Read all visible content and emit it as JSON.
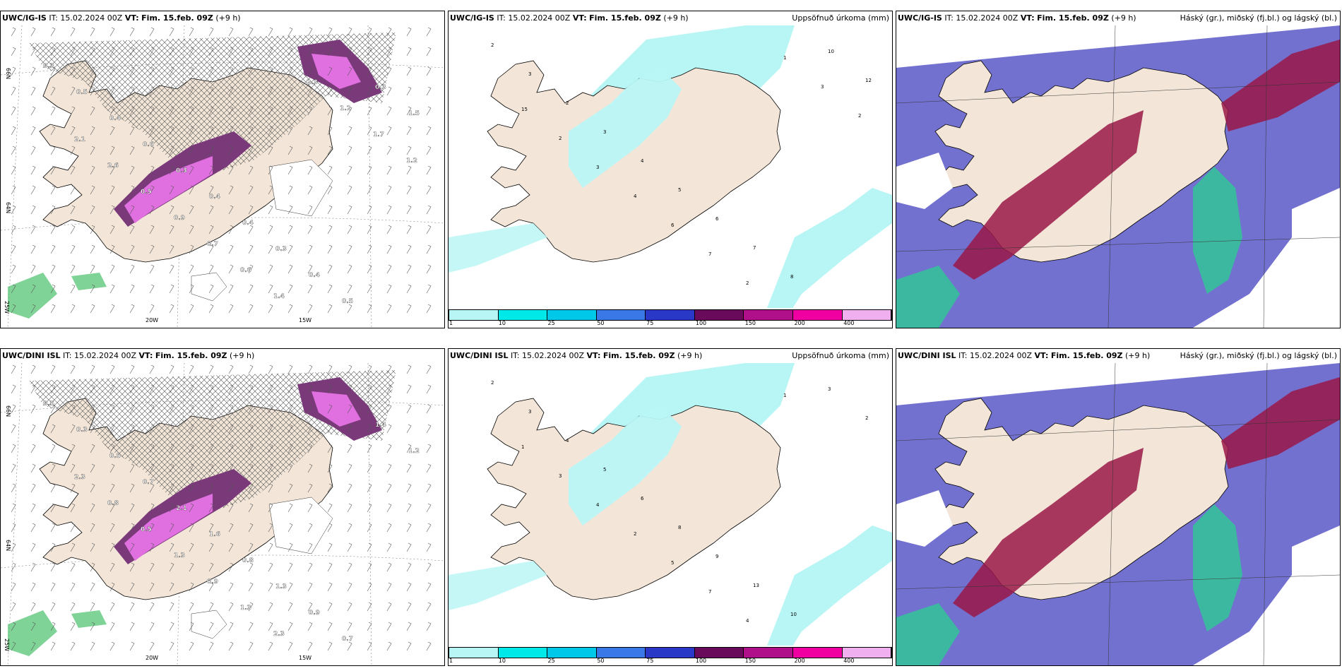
{
  "panels": [
    {
      "id": "p1",
      "title": "UWC/IG-IS",
      "it_label": "IT:",
      "it": "15.02.2024 00Z",
      "vt_label": "VT:",
      "vt": "Fim. 15.feb. 09Z",
      "lead": "(+9 h)",
      "right": ""
    },
    {
      "id": "p2",
      "title": "UWC/IG-IS",
      "it_label": "IT:",
      "it": "15.02.2024 00Z",
      "vt_label": "VT:",
      "vt": "Fim. 15.feb. 09Z",
      "lead": "(+9 h)",
      "right": "Uppsöfnuð úrkoma (mm)"
    },
    {
      "id": "p3",
      "title": "UWC/IG-IS",
      "it_label": "IT:",
      "it": "15.02.2024 00Z",
      "vt_label": "VT:",
      "vt": "Fim. 15.feb. 09Z",
      "lead": "(+9 h)",
      "right": "Háský (gr.), miðský (fj.bl.) og lágský (bl.)"
    },
    {
      "id": "p4",
      "title": "UWC/DINI ISL",
      "it_label": "IT:",
      "it": "15.02.2024 00Z",
      "vt_label": "VT:",
      "vt": "Fim. 15.feb. 09Z",
      "lead": "(+9 h)",
      "right": ""
    },
    {
      "id": "p5",
      "title": "UWC/DINI ISL",
      "it_label": "IT:",
      "it": "15.02.2024 00Z",
      "vt_label": "VT:",
      "vt": "Fim. 15.feb. 09Z",
      "lead": "(+9 h)",
      "right": "Uppsöfnuð úrkoma (mm)"
    },
    {
      "id": "p6",
      "title": "UWC/DINI ISL",
      "it_label": "IT:",
      "it": "15.02.2024 00Z",
      "vt_label": "VT:",
      "vt": "Fim. 15.feb. 09Z",
      "lead": "(+9 h)",
      "right": "Háský (gr.), miðský (fj.bl.) og lágský (bl.)"
    }
  ],
  "axis_labels": {
    "lon_20": "20W",
    "lon_15": "15W",
    "lat_66": "66N",
    "lat_64": "64N",
    "lon_25": "25W"
  },
  "colorbar": {
    "labels": [
      "1",
      "10",
      "25",
      "50",
      "75",
      "100",
      "150",
      "200",
      "400"
    ],
    "colors": [
      "#b8f5f5",
      "#00e8e8",
      "#00c8e8",
      "#3a78e8",
      "#2a38c8",
      "#6a0a5a",
      "#b0108a",
      "#f000a0",
      "#f0b0f0"
    ]
  },
  "precip_values_top": [
    "0.3",
    "0.5",
    "0.4",
    "0.6",
    "0.3",
    "0.4",
    "0.4",
    "0.3",
    "0.4",
    "0.5",
    "0.3",
    "1.5",
    "2.1",
    "2.6",
    "0.5",
    "0.9",
    "0.7",
    "0.6",
    "1.4",
    "2.3",
    "1.2",
    "1.7",
    "1.2"
  ],
  "precip_values_bottom": [
    "0.5",
    "0.3",
    "0.5",
    "0.7",
    "2.1",
    "1.6",
    "0.8",
    "1.3",
    "0.9",
    "0.7",
    "1.4",
    "1.2",
    "2.3",
    "0.8",
    "0.5",
    "1.3",
    "0.9",
    "1.3",
    "2.3"
  ],
  "accum_values_top": [
    "2",
    "3",
    "2",
    "3",
    "4",
    "5",
    "6",
    "7",
    "8",
    "10",
    "12",
    "15",
    "2",
    "3",
    "4",
    "6",
    "7",
    "2",
    "1",
    "3",
    "2"
  ],
  "accum_values_bottom": [
    "2",
    "3",
    "4",
    "5",
    "6",
    "8",
    "9",
    "13",
    "10",
    "3",
    "2",
    "1",
    "3",
    "4",
    "2",
    "5",
    "7",
    "4",
    "1"
  ],
  "colors": {
    "land": "#f3e6d8",
    "precip_dark": "#7a3a7a",
    "precip_light": "#e070e0",
    "green": "#4ac06a",
    "accum": "#b8f5f5",
    "cloud_blue": "#5a58c8",
    "cloud_red": "#9a1848",
    "cloud_green": "#2ad090"
  }
}
